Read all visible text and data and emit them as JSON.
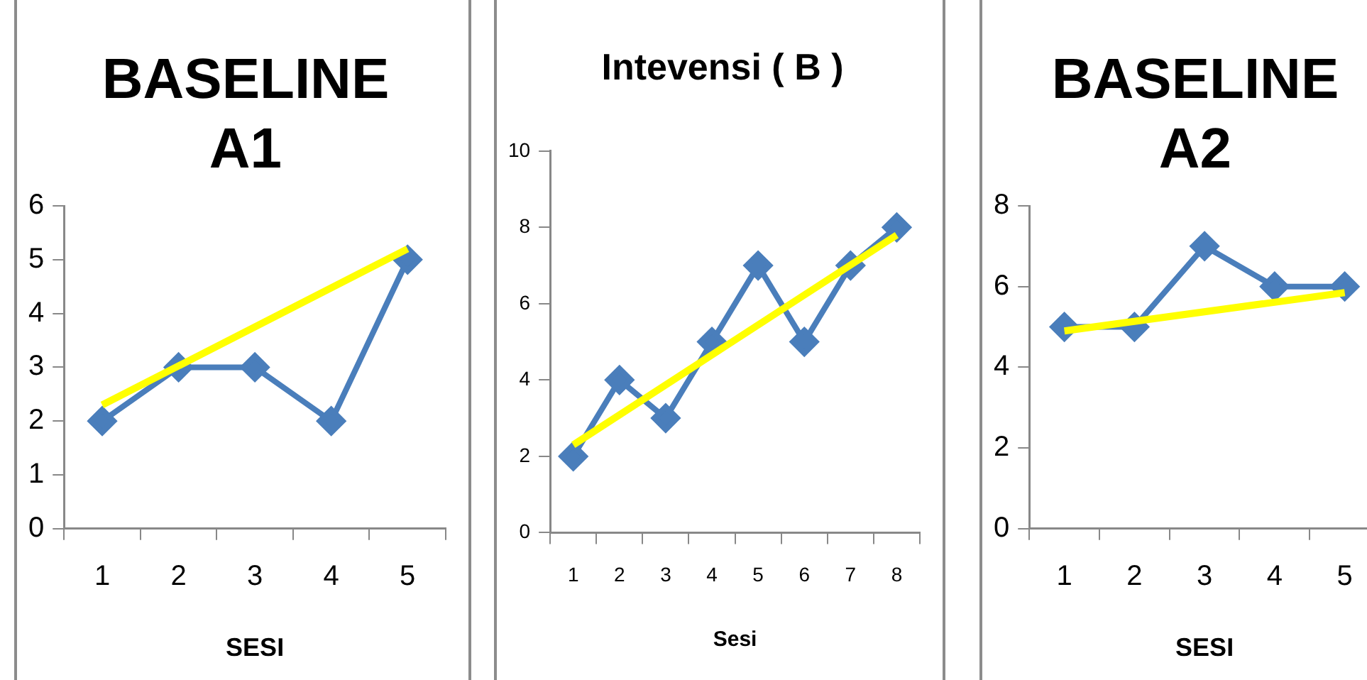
{
  "chart_data": [
    {
      "type": "line",
      "title": "BASELINE A1",
      "xlabel": "SESI",
      "categories": [
        "1",
        "2",
        "3",
        "4",
        "5"
      ],
      "ylim": [
        0,
        6
      ],
      "yticks": [
        0,
        1,
        2,
        3,
        4,
        5,
        6
      ],
      "marker": "diamond",
      "series": [
        {
          "color": "#4a7ebb",
          "values": [
            2,
            3,
            3,
            2,
            5
          ]
        },
        {
          "type": "line",
          "color": "#ffff00",
          "marker": "none",
          "x": [
            "1",
            "5"
          ],
          "values": [
            2.3,
            5.2
          ]
        }
      ]
    },
    {
      "type": "line",
      "title": "Intevensi ( B )",
      "xlabel": "Sesi",
      "categories": [
        "1",
        "2",
        "3",
        "4",
        "5",
        "6",
        "7",
        "8"
      ],
      "ylim": [
        0,
        10
      ],
      "yticks": [
        0,
        2,
        4,
        6,
        8,
        10
      ],
      "marker": "diamond",
      "series": [
        {
          "color": "#4a7ebb",
          "values": [
            2,
            4,
            3,
            5,
            7,
            5,
            7,
            8
          ]
        },
        {
          "type": "line",
          "color": "#ffff00",
          "marker": "none",
          "x": [
            "1",
            "8"
          ],
          "values": [
            2.3,
            7.8
          ]
        }
      ]
    },
    {
      "type": "line",
      "title": "BASELINE A2",
      "xlabel": "SESI",
      "categories": [
        "1",
        "2",
        "3",
        "4",
        "5"
      ],
      "ylim": [
        0,
        8
      ],
      "yticks": [
        0,
        2,
        4,
        6,
        8
      ],
      "marker": "diamond",
      "series": [
        {
          "color": "#4a7ebb",
          "values": [
            5,
            5,
            7,
            6,
            6
          ]
        },
        {
          "type": "line",
          "color": "#ffff00",
          "marker": "none",
          "x": [
            "1",
            "5"
          ],
          "values": [
            4.9,
            5.85
          ]
        }
      ]
    }
  ]
}
